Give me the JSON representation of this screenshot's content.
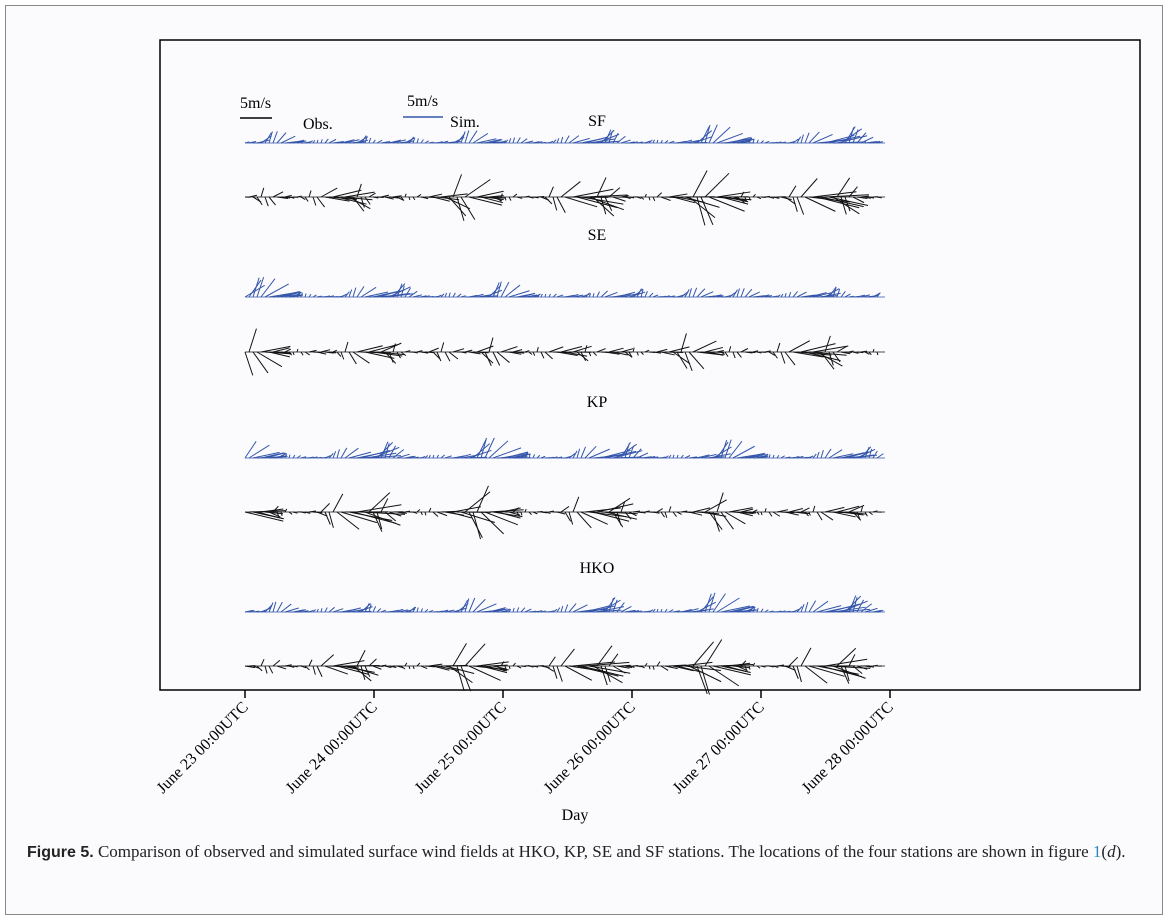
{
  "figure": {
    "legend": {
      "obs_scale": "5m/s",
      "obs": "Obs.",
      "sim_scale": "5m/s",
      "sim": "Sim."
    },
    "stations": [
      "SF",
      "SE",
      "KP",
      "HKO"
    ],
    "x_ticks": [
      "June 23 00:00UTC",
      "June 24 00:00UTC",
      "June 25 00:00UTC",
      "June 26 00:00UTC",
      "June 27 00:00UTC",
      "June 28 00:00UTC"
    ],
    "x_label": "Day"
  },
  "caption": {
    "label": "Figure 5.",
    "text": "Comparison of observed and simulated surface wind fields at HKO, KP, SE and SF stations. The locations of the four stations are shown in figure ",
    "ref": "1",
    "open": "(",
    "ref_sub": "d",
    "close": ")."
  }
}
